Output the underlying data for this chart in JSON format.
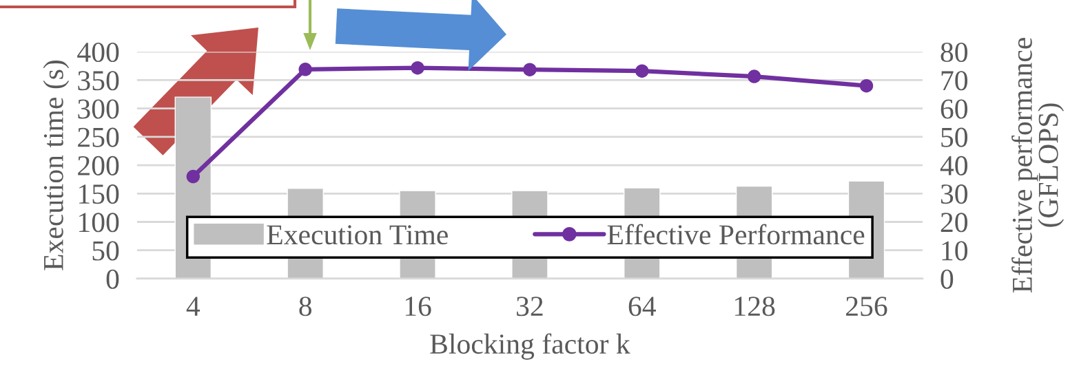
{
  "chart_data": {
    "type": "bar",
    "xlabel": "Blocking factor k",
    "ylabel": "Execution time (s)",
    "y2label": "Effective performance\n(GFLOPS)",
    "categories": [
      "4",
      "8",
      "16",
      "32",
      "64",
      "128",
      "256"
    ],
    "series": [
      {
        "name": "Execution Time",
        "color": "#bfbfbf",
        "values": [
          320,
          159,
          155,
          155,
          160,
          163,
          172
        ]
      },
      {
        "name": "Effective Performance",
        "type": "line",
        "axis": "y2",
        "color": "#7030a0",
        "marker": "circle",
        "values": [
          36,
          73.8,
          74.3,
          73.7,
          73.2,
          71.3,
          68
        ]
      }
    ],
    "ylim": [
      0,
      400
    ],
    "yticks": [
      0,
      50,
      100,
      150,
      200,
      250,
      300,
      350,
      400
    ],
    "y2lim": [
      0,
      80
    ],
    "y2ticks": [
      0,
      10,
      20,
      30,
      40,
      50,
      60,
      70,
      80
    ],
    "grid": "y",
    "legend": "bottom"
  }
}
